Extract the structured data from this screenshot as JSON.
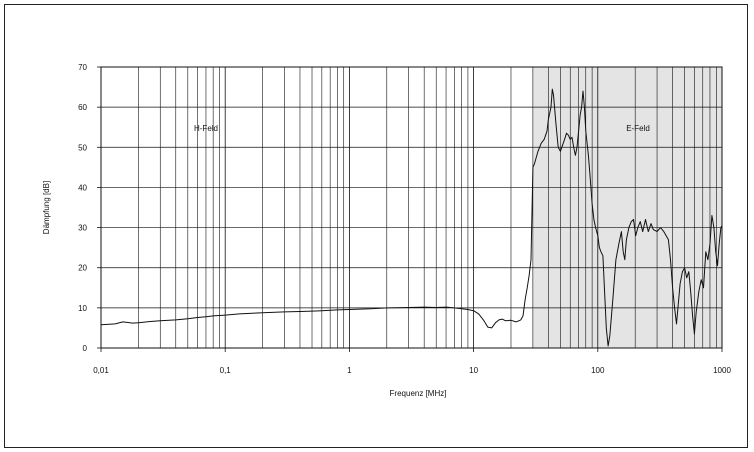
{
  "chart_data": {
    "type": "line",
    "title": "",
    "xlabel": "Frequenz [MHz]",
    "ylabel": "Dämpfung [dB]",
    "xscale": "log",
    "xlim": [
      0.01,
      1000
    ],
    "ylim": [
      0,
      70
    ],
    "grid": true,
    "x_ticks": [
      {
        "value": 0.01,
        "label": "0,01"
      },
      {
        "value": 0.1,
        "label": "0,1"
      },
      {
        "value": 1,
        "label": "1"
      },
      {
        "value": 10,
        "label": "10"
      },
      {
        "value": 100,
        "label": "100"
      },
      {
        "value": 1000,
        "label": "1000"
      }
    ],
    "y_ticks": [
      {
        "value": 0,
        "label": "0"
      },
      {
        "value": 10,
        "label": "10"
      },
      {
        "value": 20,
        "label": "20"
      },
      {
        "value": 30,
        "label": "30"
      },
      {
        "value": 40,
        "label": "40"
      },
      {
        "value": 50,
        "label": "50"
      },
      {
        "value": 60,
        "label": "60"
      },
      {
        "value": 70,
        "label": "70"
      }
    ],
    "regions": [
      {
        "label": "H-Feld",
        "from": 0.01,
        "to": 30,
        "shaded": false
      },
      {
        "label": "E-Feld",
        "from": 30,
        "to": 1000,
        "shaded": true,
        "color": "#e4e4e4"
      }
    ],
    "series": [
      {
        "color": "#111111",
        "points": [
          [
            0.01,
            5.8
          ],
          [
            0.013,
            6.0
          ],
          [
            0.015,
            6.5
          ],
          [
            0.018,
            6.2
          ],
          [
            0.02,
            6.3
          ],
          [
            0.025,
            6.6
          ],
          [
            0.03,
            6.8
          ],
          [
            0.04,
            7.0
          ],
          [
            0.05,
            7.3
          ],
          [
            0.06,
            7.6
          ],
          [
            0.07,
            7.8
          ],
          [
            0.08,
            8.0
          ],
          [
            0.1,
            8.2
          ],
          [
            0.13,
            8.5
          ],
          [
            0.15,
            8.6
          ],
          [
            0.2,
            8.8
          ],
          [
            0.3,
            9.0
          ],
          [
            0.4,
            9.1
          ],
          [
            0.5,
            9.2
          ],
          [
            0.6,
            9.3
          ],
          [
            0.8,
            9.5
          ],
          [
            1,
            9.6
          ],
          [
            1.5,
            9.8
          ],
          [
            2,
            10.0
          ],
          [
            3,
            10.1
          ],
          [
            4,
            10.2
          ],
          [
            5,
            10.1
          ],
          [
            6,
            10.2
          ],
          [
            7,
            10.0
          ],
          [
            8,
            9.8
          ],
          [
            9,
            9.6
          ],
          [
            10,
            9.3
          ],
          [
            11,
            8.5
          ],
          [
            12,
            7.0
          ],
          [
            13,
            5.2
          ],
          [
            14,
            5.0
          ],
          [
            15,
            6.3
          ],
          [
            16,
            7.0
          ],
          [
            17,
            7.2
          ],
          [
            18,
            6.8
          ],
          [
            20,
            6.9
          ],
          [
            22,
            6.5
          ],
          [
            24,
            7.0
          ],
          [
            25,
            8.0
          ],
          [
            26,
            12.0
          ],
          [
            27,
            15.0
          ],
          [
            28,
            18.0
          ],
          [
            29,
            22.0
          ],
          [
            30,
            45.0
          ],
          [
            31,
            46.0
          ],
          [
            33,
            49.0
          ],
          [
            35,
            51.0
          ],
          [
            37,
            52.0
          ],
          [
            39,
            54.0
          ],
          [
            40,
            57.0
          ],
          [
            42,
            60.0
          ],
          [
            43,
            64.5
          ],
          [
            44,
            63.0
          ],
          [
            46,
            56.0
          ],
          [
            48,
            50.0
          ],
          [
            50,
            49.0
          ],
          [
            52,
            50.5
          ],
          [
            54,
            52.0
          ],
          [
            56,
            53.5
          ],
          [
            58,
            53.0
          ],
          [
            60,
            52.0
          ],
          [
            62,
            52.5
          ],
          [
            64,
            50.0
          ],
          [
            66,
            48.0
          ],
          [
            68,
            50.0
          ],
          [
            70,
            54.0
          ],
          [
            72,
            58.0
          ],
          [
            74,
            60.0
          ],
          [
            76,
            64.0
          ],
          [
            78,
            60.0
          ],
          [
            80,
            54.0
          ],
          [
            82,
            51.0
          ],
          [
            84,
            48.0
          ],
          [
            86,
            44.0
          ],
          [
            88,
            40.0
          ],
          [
            90,
            36.0
          ],
          [
            93,
            32.0
          ],
          [
            96,
            30.0
          ],
          [
            100,
            28.0
          ],
          [
            103,
            25.0
          ],
          [
            106,
            24.0
          ],
          [
            110,
            23.0
          ],
          [
            113,
            15.0
          ],
          [
            117,
            5.0
          ],
          [
            121,
            0.5
          ],
          [
            125,
            3.0
          ],
          [
            132,
            12.0
          ],
          [
            140,
            22.0
          ],
          [
            148,
            26.0
          ],
          [
            155,
            29.0
          ],
          [
            160,
            24.0
          ],
          [
            165,
            22.0
          ],
          [
            170,
            27.0
          ],
          [
            178,
            30.0
          ],
          [
            186,
            31.5
          ],
          [
            194,
            32.0
          ],
          [
            202,
            28.0
          ],
          [
            210,
            30.0
          ],
          [
            220,
            31.5
          ],
          [
            230,
            29.0
          ],
          [
            242,
            32.0
          ],
          [
            255,
            29.0
          ],
          [
            268,
            31.0
          ],
          [
            280,
            29.5
          ],
          [
            300,
            29.0
          ],
          [
            320,
            30.0
          ],
          [
            340,
            29.0
          ],
          [
            355,
            28.0
          ],
          [
            370,
            27.0
          ],
          [
            385,
            22.0
          ],
          [
            400,
            15.0
          ],
          [
            415,
            10.0
          ],
          [
            430,
            6.0
          ],
          [
            445,
            11.0
          ],
          [
            460,
            16.0
          ],
          [
            480,
            19.0
          ],
          [
            500,
            20.0
          ],
          [
            520,
            17.5
          ],
          [
            540,
            19.0
          ],
          [
            560,
            14.0
          ],
          [
            580,
            8.0
          ],
          [
            600,
            3.5
          ],
          [
            620,
            9.0
          ],
          [
            650,
            14.0
          ],
          [
            680,
            17.0
          ],
          [
            710,
            15.0
          ],
          [
            740,
            24.0
          ],
          [
            770,
            22.0
          ],
          [
            800,
            26.0
          ],
          [
            830,
            33.0
          ],
          [
            860,
            30.0
          ],
          [
            890,
            24.0
          ],
          [
            920,
            20.5
          ],
          [
            950,
            26.0
          ],
          [
            980,
            30.0
          ],
          [
            1000,
            30.5
          ]
        ]
      }
    ]
  }
}
